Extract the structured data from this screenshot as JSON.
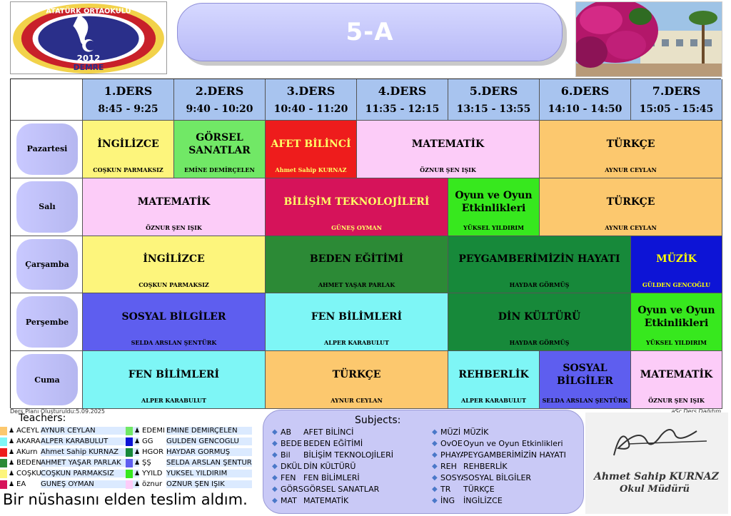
{
  "header": {
    "class_name": "5-A",
    "logo": {
      "ring_text": "ATATÜRK ORTAOKULU",
      "year": "2012",
      "town": "DEMRE"
    }
  },
  "periods": [
    {
      "label": "1.DERS",
      "time": "8:45 - 9:25"
    },
    {
      "label": "2.DERS",
      "time": "9:40 - 10:20"
    },
    {
      "label": "3.DERS",
      "time": "10:40 - 11:20"
    },
    {
      "label": "4.DERS",
      "time": "11:35 - 12:15"
    },
    {
      "label": "5.DERS",
      "time": "13:15 - 13:55"
    },
    {
      "label": "6.DERS",
      "time": "14:10 - 14:50"
    },
    {
      "label": "7.DERS",
      "time": "15:05 - 15:45"
    }
  ],
  "days": [
    "Pazartesi",
    "Salı",
    "Çarşamba",
    "Perşembe",
    "Cuma"
  ],
  "schedule": [
    [
      {
        "subject": "İNGİLİZCE",
        "teacher": "COŞKUN PARMAKSIZ",
        "color": "#fdf57c"
      },
      {
        "subject": "GÖRSEL SANATLAR",
        "teacher": "EMİNE DEMİRÇELEN",
        "color": "#71e866"
      },
      {
        "subject": "AFET BİLİNCİ",
        "teacher": "Ahmet Sahip KURNAZ",
        "color": "#ee1c1c"
      },
      {
        "subject": "MATEMATİK",
        "teacher": "ÖZNUR ŞEN IŞIK",
        "color": "#fcccf8"
      },
      {
        "subject": "TÜRKÇE",
        "teacher": "AYNUR CEYLAN",
        "color": "#fcc86e"
      }
    ],
    [
      {
        "subject": "MATEMATİK",
        "teacher": "ÖZNUR ŞEN IŞIK",
        "color": "#fcccf8"
      },
      {
        "subject": "BİLİŞİM TEKNOLOJİLERİ",
        "teacher": "GÜNEŞ OYMAN",
        "color": "#d6135a"
      },
      {
        "subject": "Oyun ve Oyun Etkinlikleri",
        "teacher": "YÜKSEL YILDIRIM",
        "color": "#37e81e"
      },
      {
        "subject": "TÜRKÇE",
        "teacher": "AYNUR CEYLAN",
        "color": "#fcc86e"
      }
    ],
    [
      {
        "subject": "İNGİLİZCE",
        "teacher": "COŞKUN PARMAKSIZ",
        "color": "#fdf57c"
      },
      {
        "subject": "BEDEN EĞİTİMİ",
        "teacher": "AHMET YAŞAR PARLAK",
        "color": "#2c8a36"
      },
      {
        "subject": "PEYGAMBERİMİZİN HAYATI",
        "teacher": "HAYDAR GÖRMÜŞ",
        "color": "#17893a"
      },
      {
        "subject": "MÜZİK",
        "teacher": "GÜLDEN GENCOĞLU",
        "color": "#0d14d6"
      }
    ],
    [
      {
        "subject": "SOSYAL BİLGİLER",
        "teacher": "SELDA ARSLAN ŞENTÜRK",
        "color": "#5e5eef"
      },
      {
        "subject": "FEN BİLİMLERİ",
        "teacher": "ALPER KARABULUT",
        "color": "#7ef6f6"
      },
      {
        "subject": "DİN KÜLTÜRÜ",
        "teacher": "HAYDAR GÖRMÜŞ",
        "color": "#17893a"
      },
      {
        "subject": "Oyun ve Oyun Etkinlikleri",
        "teacher": "YÜKSEL YILDIRIM",
        "color": "#37e81e"
      }
    ],
    [
      {
        "subject": "FEN BİLİMLERİ",
        "teacher": "ALPER KARABULUT",
        "color": "#7ef6f6"
      },
      {
        "subject": "TÜRKÇE",
        "teacher": "AYNUR CEYLAN",
        "color": "#fcc86e"
      },
      {
        "subject": "REHBERLİK",
        "teacher": "ALPER KARABULUT",
        "color": "#7ef6f6"
      },
      {
        "subject": "SOSYAL BİLGİLER",
        "teacher": "SELDA ARSLAN ŞENTÜRK",
        "color": "#5e5eef"
      },
      {
        "subject": "MATEMATİK",
        "teacher": "ÖZNUR ŞEN IŞIK",
        "color": "#fcccf8"
      }
    ]
  ],
  "footer": {
    "created": "Ders Planı Oluşturuldu:5.09.2025",
    "software": "aSc Ders Dağıtım",
    "teachers_title": "Teachers:",
    "subjects_title": "Subjects:",
    "statement": "Bir nüshasını elden teslim aldım.",
    "signature_name": "Ahmet Sahip KURNAZ",
    "signature_title": "Okul Müdürü"
  },
  "teachers": [
    {
      "code": "ACEYL",
      "name": "AYNUR CEYLAN",
      "color": "#fcc86e"
    },
    {
      "code": "AKARA",
      "name": "ALPER KARABULUT",
      "color": "#7ef6f6"
    },
    {
      "code": "AKurn",
      "name": "Ahmet Sahip KURNAZ",
      "color": "#ee1c1c"
    },
    {
      "code": "BEDEN",
      "name": "AHMET YAŞAR PARLAK",
      "color": "#2c8a36"
    },
    {
      "code": "COŞKU",
      "name": "COŞKUN PARMAKSIZ",
      "color": "#fdf57c"
    },
    {
      "code": "EA",
      "name": "GÜNEŞ OYMAN",
      "color": "#d6135a"
    },
    {
      "code": "EDEMI",
      "name": "EMİNE DEMİRÇELEN",
      "color": "#71e866"
    },
    {
      "code": "GG",
      "name": "GÜLDEN GENCOĞLU",
      "color": "#0d14d6"
    },
    {
      "code": "HGÖR",
      "name": "HAYDAR GÖRMÜŞ",
      "color": "#17893a"
    },
    {
      "code": "ŞŞ",
      "name": "SELDA ARSLAN ŞENTÜRK",
      "color": "#5e5eef"
    },
    {
      "code": "YYILD",
      "name": "YÜKSEL YILDIRIM",
      "color": "#37e81e"
    },
    {
      "code": "öznur",
      "name": "ÖZNUR ŞEN IŞIK",
      "color": "#fcccf8"
    }
  ],
  "subjects": [
    {
      "code": "AB",
      "name": "AFET BİLİNCİ"
    },
    {
      "code": "BEDE",
      "name": "BEDEN EĞİTİMİ"
    },
    {
      "code": "Bil",
      "name": "BİLİŞİM TEKNOLOJİLERİ"
    },
    {
      "code": "DKÜL",
      "name": "DİN KÜLTÜRÜ"
    },
    {
      "code": "FEN",
      "name": "FEN BİLİMLERİ"
    },
    {
      "code": "GÖRS",
      "name": "GÖRSEL SANATLAR"
    },
    {
      "code": "MAT",
      "name": "MATEMATİK"
    },
    {
      "code": "MÜZİ",
      "name": "MÜZİK"
    },
    {
      "code": "OvOE",
      "name": "Oyun ve Oyun Etkinlikleri"
    },
    {
      "code": "PHAYA",
      "name": "PEYGAMBERİMİZİN HAYATI"
    },
    {
      "code": "REH",
      "name": "REHBERLİK"
    },
    {
      "code": "SOSYA",
      "name": "SOSYAL BİLGİLER"
    },
    {
      "code": "TR",
      "name": "TÜRKÇE"
    },
    {
      "code": "İNG",
      "name": "İNGİLİZCE"
    }
  ]
}
